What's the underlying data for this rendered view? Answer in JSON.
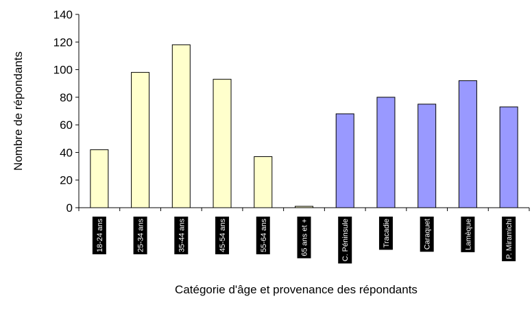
{
  "chart_data": {
    "type": "bar",
    "title": "",
    "xlabel": "Catégorie d'âge et provenance des répondants",
    "ylabel": "Nombre de répondants",
    "ylim": [
      0,
      140
    ],
    "yticks": [
      0,
      20,
      40,
      60,
      80,
      100,
      120,
      140
    ],
    "grid": false,
    "legend": "none",
    "categories": [
      "18-24 ans",
      "25-34 ans",
      "35-44 ans",
      "45-54 ans",
      "55-64 ans",
      "65 ans et +",
      "C. Péninsule",
      "Tracadie",
      "Caraquet",
      "Lamèque",
      "P. Miramichi"
    ],
    "values": [
      42,
      98,
      118,
      93,
      37,
      1,
      68,
      80,
      75,
      92,
      73
    ],
    "bar_colors": [
      "#ffffcc",
      "#ffffcc",
      "#ffffcc",
      "#ffffcc",
      "#ffffcc",
      "#ffffcc",
      "#9999ff",
      "#9999ff",
      "#9999ff",
      "#9999ff",
      "#9999ff"
    ]
  }
}
